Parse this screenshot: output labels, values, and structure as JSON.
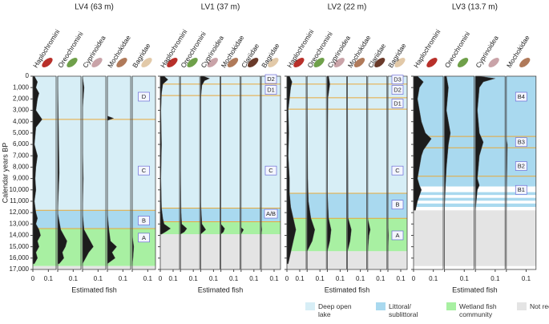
{
  "chart_data": [
    {
      "type": "area",
      "title": "LV4 (63 m)",
      "ylabel": "Calendar years BP",
      "xlabel": "Estimated fish",
      "ylim": [
        0,
        17000
      ],
      "y_reversed": true,
      "yticks": [
        0,
        {
          "value": 1000,
          "label": "1,000"
        },
        {
          "value": 2000,
          "label": "2,000"
        },
        {
          "value": 3000,
          "label": "3,000"
        },
        {
          "value": 4000,
          "label": "4,000"
        },
        {
          "value": 5000,
          "label": "5,000"
        },
        {
          "value": 6000,
          "label": "6,000"
        },
        {
          "value": 7000,
          "label": "7,000"
        },
        {
          "value": 8000,
          "label": "8,000"
        },
        {
          "value": 9000,
          "label": "9,000"
        },
        {
          "value": 10000,
          "label": "10,000"
        },
        {
          "value": 11000,
          "label": "11,000"
        },
        {
          "value": 12000,
          "label": "12,000"
        },
        {
          "value": 13000,
          "label": "13,000"
        },
        {
          "value": 14000,
          "label": "14,000"
        },
        {
          "value": 15000,
          "label": "15,000"
        },
        {
          "value": 16000,
          "label": "16,000"
        },
        {
          "value": 17000,
          "label": "17,000"
        }
      ],
      "xlim": [
        0,
        0.15
      ],
      "xticks": [
        0,
        0.1
      ],
      "zones": [
        {
          "range": [
            0,
            11800
          ],
          "color": "#d7eef6"
        },
        {
          "range": [
            11800,
            13400
          ],
          "color": "#a9d9ef"
        },
        {
          "range": [
            13400,
            16700
          ],
          "color": "#a8f0a2"
        },
        {
          "range": [
            16700,
            17000
          ],
          "color": "#e4e4e4"
        }
      ],
      "boundaries": [
        3800,
        11800,
        13400
      ],
      "zone_labels": [
        {
          "text": "D",
          "age": 1800
        },
        {
          "text": "C",
          "age": 8300
        },
        {
          "text": "B",
          "age": 12700
        },
        {
          "text": "A",
          "age": 14200
        }
      ],
      "series": [
        {
          "name": "Haplochromini",
          "icon_color": "#b8302a",
          "ages": [
            0,
            500,
            1000,
            1500,
            2000,
            3000,
            3800,
            4500,
            6000,
            7000,
            8000,
            9000,
            10000,
            11000,
            12000,
            12500,
            13000,
            13500,
            14000,
            14500,
            15000,
            15500,
            16000,
            16500
          ],
          "values": [
            0.01,
            0.03,
            0.02,
            0.04,
            0.03,
            0.02,
            0.06,
            0.02,
            0.01,
            0.03,
            0.02,
            0.015,
            0.02,
            0.01,
            0.02,
            0.03,
            0.02,
            0.04,
            0.05,
            0.03,
            0.04,
            0.02,
            0.03,
            0.01
          ]
        },
        {
          "name": "Oreochromini",
          "icon_color": "#6fa04a",
          "ages": [
            0,
            4000,
            8500,
            12000,
            13500,
            14000,
            14500,
            15000,
            15500,
            16000,
            16500
          ],
          "values": [
            0,
            0.005,
            0.01,
            0,
            0.02,
            0.04,
            0.06,
            0.05,
            0.03,
            0.04,
            0.01
          ]
        },
        {
          "name": "Cyprinoidea",
          "icon_color": "#c9a3a8",
          "ages": [
            0,
            500,
            1000,
            3000,
            6000,
            9000,
            12000,
            13500,
            14000,
            14500,
            15000,
            15500,
            16000,
            16500
          ],
          "values": [
            0,
            0.005,
            0.01,
            0,
            0,
            0.005,
            0,
            0.01,
            0.03,
            0.05,
            0.07,
            0.04,
            0.02,
            0
          ]
        },
        {
          "name": "Mochokidae",
          "icon_color": "#b07a5a",
          "ages": [
            0,
            3500,
            3700,
            3900,
            12000,
            13500,
            14500,
            15000,
            15500,
            16000,
            16500
          ],
          "values": [
            0,
            0,
            0.04,
            0,
            0,
            0.01,
            0.02,
            0.06,
            0.03,
            0.05,
            0
          ]
        },
        {
          "name": "Bagridae",
          "icon_color": "#e2c9a8",
          "ages": [
            0,
            14000,
            15000,
            16000,
            16500
          ],
          "values": [
            0,
            0,
            0.01,
            0.005,
            0
          ]
        }
      ]
    },
    {
      "type": "area",
      "title": "LV1 (37 m)",
      "xlabel": "Estimated fish",
      "ylim": [
        0,
        17000
      ],
      "y_reversed": true,
      "xlim": [
        0,
        0.15
      ],
      "xticks": [
        0,
        0.1
      ],
      "zones": [
        {
          "range": [
            0,
            11600
          ],
          "color": "#d7eef6"
        },
        {
          "range": [
            11600,
            12800
          ],
          "color": "#a9d9ef"
        },
        {
          "range": [
            12800,
            13900
          ],
          "color": "#a8f0a2"
        },
        {
          "range": [
            13900,
            17000
          ],
          "color": "#e4e4e4"
        }
      ],
      "boundaries": [
        700,
        1700,
        11600,
        12800
      ],
      "zone_labels": [
        {
          "text": "D2",
          "age": 250
        },
        {
          "text": "D1",
          "age": 1200
        },
        {
          "text": "C",
          "age": 8300
        },
        {
          "text": "A/B",
          "age": 12100
        }
      ],
      "series": [
        {
          "name": "Haplochromini",
          "icon_color": "#b8302a",
          "ages": [
            0,
            300,
            700,
            1500,
            3000,
            6000,
            9000,
            11600,
            12500,
            13000,
            13400,
            13700,
            13900
          ],
          "values": [
            0.03,
            0.06,
            0.02,
            0.01,
            0.005,
            0.01,
            0.005,
            0.01,
            0.02,
            0.03,
            0.08,
            0.04,
            0.01
          ]
        },
        {
          "name": "Oreochromini",
          "icon_color": "#6fa04a",
          "ages": [
            0,
            8000,
            12000,
            13000,
            13400,
            13700,
            13900
          ],
          "values": [
            0,
            0,
            0.005,
            0.01,
            0.05,
            0.03,
            0
          ]
        },
        {
          "name": "Cyprinoidea",
          "icon_color": "#c9a3a8",
          "ages": [
            0,
            200,
            400,
            800,
            2000,
            11000,
            13000,
            13500,
            13900
          ],
          "values": [
            0.02,
            0.07,
            0.03,
            0.01,
            0,
            0,
            0.01,
            0.04,
            0
          ]
        },
        {
          "name": "Mochokidae",
          "icon_color": "#b07a5a",
          "ages": [
            0,
            13000,
            13400,
            13700,
            13900
          ],
          "values": [
            0,
            0,
            0.03,
            0.02,
            0
          ]
        },
        {
          "name": "Clariidae",
          "icon_color": "#6a3a2a",
          "ages": [
            0,
            13300,
            13500,
            13900
          ],
          "values": [
            0,
            0,
            0.02,
            0
          ]
        },
        {
          "name": "Bagridae",
          "icon_color": "#e2c9a8",
          "ages": [
            0,
            13000,
            13500,
            13900
          ],
          "values": [
            0,
            0,
            0.005,
            0
          ]
        }
      ]
    },
    {
      "type": "area",
      "title": "LV2 (22 m)",
      "xlabel": "Estimated fish",
      "ylim": [
        0,
        17000
      ],
      "y_reversed": true,
      "xlim": [
        0,
        0.15
      ],
      "xticks": [
        0,
        0.1
      ],
      "zones": [
        {
          "range": [
            0,
            10300
          ],
          "color": "#d7eef6"
        },
        {
          "range": [
            10300,
            12500
          ],
          "color": "#a9d9ef"
        },
        {
          "range": [
            12500,
            15400
          ],
          "color": "#a8f0a2"
        },
        {
          "range": [
            15400,
            17000
          ],
          "color": "#e4e4e4"
        }
      ],
      "boundaries": [
        700,
        1900,
        2900,
        10300,
        12500
      ],
      "zone_labels": [
        {
          "text": "D3",
          "age": 300
        },
        {
          "text": "D2",
          "age": 1200
        },
        {
          "text": "D1",
          "age": 2400
        },
        {
          "text": "C",
          "age": 8300
        },
        {
          "text": "B",
          "age": 11300
        },
        {
          "text": "A",
          "age": 14000
        }
      ],
      "series": [
        {
          "name": "Haplochromini",
          "icon_color": "#b8302a",
          "ages": [
            0,
            500,
            1000,
            2000,
            3000,
            5000,
            7000,
            9000,
            10300,
            11500,
            12500,
            13500,
            14500,
            15500,
            16000,
            16500
          ],
          "values": [
            0.02,
            0.04,
            0.03,
            0.02,
            0.01,
            0.015,
            0.01,
            0.02,
            0.02,
            0.03,
            0.05,
            0.07,
            0.05,
            0.03,
            0.02,
            0.01
          ]
        },
        {
          "name": "Oreochromini",
          "icon_color": "#6fa04a",
          "ages": [
            0,
            9000,
            11000,
            12500,
            13500,
            14500,
            15400
          ],
          "values": [
            0,
            0.005,
            0.01,
            0.03,
            0.06,
            0.04,
            0
          ]
        },
        {
          "name": "Cyprinoidea",
          "icon_color": "#c9a3a8",
          "ages": [
            0,
            700,
            1900,
            10000,
            12500,
            13500,
            14500,
            15400
          ],
          "values": [
            0.01,
            0.02,
            0.005,
            0,
            0.01,
            0.03,
            0.02,
            0
          ]
        },
        {
          "name": "Mochokidae",
          "icon_color": "#b07a5a",
          "ages": [
            0,
            12500,
            13500,
            14500,
            15400
          ],
          "values": [
            0,
            0.005,
            0.03,
            0.02,
            0
          ]
        },
        {
          "name": "Clariidae",
          "icon_color": "#6a3a2a",
          "ages": [
            0,
            12500,
            13500,
            14000,
            15400
          ],
          "values": [
            0,
            0,
            0.02,
            0.01,
            0
          ]
        },
        {
          "name": "Bagridae",
          "icon_color": "#e2c9a8",
          "ages": [
            0,
            13000,
            14000,
            15400
          ],
          "values": [
            0,
            0,
            0.005,
            0
          ]
        }
      ]
    },
    {
      "type": "area",
      "title": "LV3 (13.7 m)",
      "xlabel": "Estimated fish",
      "ylim": [
        0,
        17000
      ],
      "y_reversed": true,
      "xlim": [
        0,
        0.15
      ],
      "xticks": [
        0,
        0.1
      ],
      "zones": [
        {
          "range": [
            0,
            9700
          ],
          "color": "#a9d9ef"
        },
        {
          "range": [
            10200,
            10450
          ],
          "color": "#a9d9ef"
        },
        {
          "range": [
            10700,
            10950
          ],
          "color": "#a9d9ef"
        },
        {
          "range": [
            11200,
            11500
          ],
          "color": "#a9d9ef"
        },
        {
          "range": [
            11800,
            16700
          ],
          "color": "#e4e4e4"
        }
      ],
      "boundaries": [
        5300,
        6300,
        8800
      ],
      "zone_labels": [
        {
          "text": "B4",
          "age": 1800
        },
        {
          "text": "B3",
          "age": 5800
        },
        {
          "text": "B2",
          "age": 7900
        },
        {
          "text": "B1",
          "age": 10000
        }
      ],
      "series": [
        {
          "name": "Haplochromini",
          "icon_color": "#b8302a",
          "ages": [
            0,
            500,
            1000,
            2000,
            3000,
            4000,
            5000,
            5500,
            6000,
            6500,
            7000,
            8000,
            9000,
            9600,
            10000,
            10500,
            11000,
            11800
          ],
          "values": [
            0.02,
            0.05,
            0.03,
            0.02,
            0.03,
            0.04,
            0.06,
            0.09,
            0.07,
            0.05,
            0.04,
            0.03,
            0.02,
            0.03,
            0.04,
            0.03,
            0.02,
            0.01
          ]
        },
        {
          "name": "Oreochromini",
          "icon_color": "#6fa04a",
          "ages": [
            0,
            1000,
            3000,
            5000,
            6000,
            8000,
            9600,
            11800
          ],
          "values": [
            0.01,
            0.02,
            0.01,
            0.03,
            0.02,
            0.01,
            0.005,
            0
          ]
        },
        {
          "name": "Cyprinoidea",
          "icon_color": "#c9a3a8",
          "ages": [
            0,
            200,
            500,
            1000,
            3000,
            5000,
            5800,
            7000,
            9000,
            9600,
            10000,
            11800
          ],
          "values": [
            0.02,
            0.1,
            0.04,
            0.02,
            0.01,
            0.02,
            0.04,
            0.02,
            0.01,
            0.02,
            0.01,
            0
          ]
        },
        {
          "name": "Mochokidae",
          "icon_color": "#b07a5a",
          "ages": [
            0,
            5500,
            6000,
            11800
          ],
          "values": [
            0,
            0,
            0.005,
            0
          ]
        }
      ]
    }
  ],
  "legend": [
    {
      "name": "Deep open lake",
      "color": "#d7eef6"
    },
    {
      "name": "Littoral/ sublittoral",
      "color": "#a9d9ef"
    },
    {
      "name": "Wetland fish community",
      "color": "#a8f0a2"
    },
    {
      "name": "Not recovered",
      "color": "#e4e4e4"
    }
  ]
}
